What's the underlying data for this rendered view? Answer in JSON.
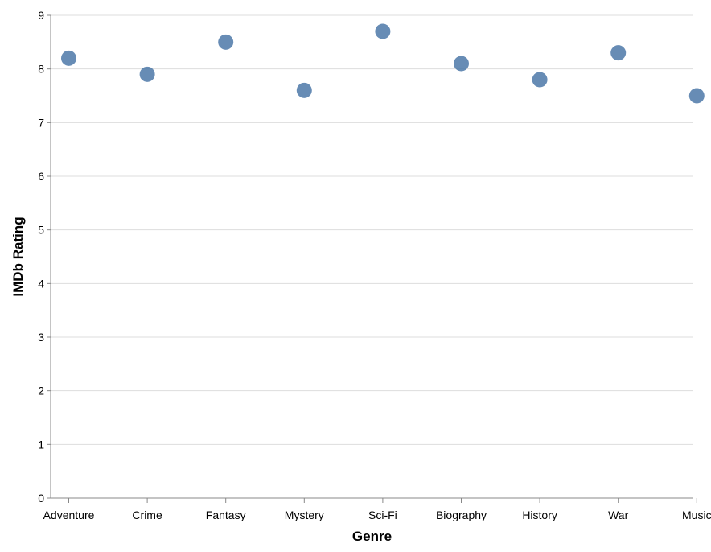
{
  "chart_data": {
    "type": "scatter",
    "categories": [
      "Adventure",
      "Crime",
      "Fantasy",
      "Mystery",
      "Sci-Fi",
      "Biography",
      "History",
      "War",
      "Music"
    ],
    "values": [
      8.2,
      7.9,
      8.5,
      7.6,
      8.7,
      8.1,
      7.8,
      8.3,
      7.5
    ],
    "xlabel": "Genre",
    "ylabel": "IMDb Rating",
    "ylim": [
      0,
      9
    ],
    "yticks": [
      0,
      1,
      2,
      3,
      4,
      5,
      6,
      7,
      8,
      9
    ],
    "grid": true,
    "point_color": "#4c78a8"
  }
}
